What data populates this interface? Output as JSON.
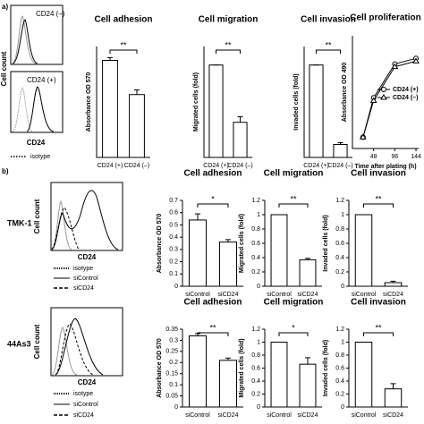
{
  "figure": {
    "panel_labels": [
      "a)",
      "b)"
    ],
    "row_labels": [
      "TMK-1",
      "44As3"
    ],
    "flow_top": {
      "y_label": "Cell count",
      "x_label": "CD24",
      "panels": [
        "CD24 (–)",
        "CD24 (+)"
      ],
      "legend": [
        "isotype"
      ]
    },
    "flow_tmk": {
      "y_label": "Cell count",
      "x_label": "CD24",
      "legend": [
        "isotype",
        "siControl",
        "siCD24"
      ]
    },
    "flow_44": {
      "y_label": "Cell count",
      "x_label": "CD24",
      "legend": [
        "isotype",
        "siControl",
        "siCD24"
      ]
    }
  },
  "chart_data": [
    {
      "type": "bar",
      "title": "Cell adhesion",
      "y_label": "Absorbance OD 570",
      "categories": [
        "CD24 (+)",
        "CD24 (–)"
      ],
      "values": [
        1.05,
        0.68
      ],
      "errors": [
        0.03,
        0.05
      ],
      "ylim": [
        0,
        1.2
      ],
      "annotation": "**"
    },
    {
      "type": "bar",
      "title": "Cell migration",
      "y_label": "Migrated cells (fold)",
      "categories": [
        "CD24 (+)",
        "CD24 (–)"
      ],
      "values": [
        1,
        0.38
      ],
      "errors": [
        0,
        0.06
      ],
      "ylim": [
        0,
        1.2
      ],
      "annotation": "**"
    },
    {
      "type": "bar",
      "title": "Cell invasion",
      "y_label": "Invaded cells (fold)",
      "categories": [
        "CD24 (+)",
        "CD24 (–)"
      ],
      "values": [
        1,
        0.14
      ],
      "errors": [
        0,
        0.02
      ],
      "ylim": [
        0,
        1.2
      ],
      "annotation": "**"
    },
    {
      "type": "line",
      "title": "Cell proliferation",
      "y_label": "Absorbance OD 490",
      "x_label": "Time after plating (h)",
      "x": [
        24,
        48,
        96,
        144
      ],
      "xlim": [
        0,
        150
      ],
      "xticks": [
        48,
        96,
        144
      ],
      "ylim": [
        0,
        2
      ],
      "series": [
        {
          "name": "CD24 (+)",
          "color": "#000000",
          "values": [
            0.2,
            0.9,
            1.5,
            1.6
          ]
        },
        {
          "name": "CD24 (–)",
          "color": "#000000",
          "values": [
            0.2,
            0.85,
            1.45,
            1.55
          ]
        }
      ]
    },
    {
      "type": "bar",
      "title": "Cell adhesion",
      "y_label": "Absorbance OD 570",
      "categories": [
        "siControl",
        "siCD24"
      ],
      "values": [
        0.54,
        0.36
      ],
      "errors": [
        0.05,
        0.02
      ],
      "ylim": [
        0,
        0.7
      ],
      "yticks": [
        0,
        0.1,
        0.2,
        0.3,
        0.4,
        0.5,
        0.6,
        0.7
      ],
      "annotation": "*"
    },
    {
      "type": "bar",
      "title": "Cell migration",
      "y_label": "Migrated cells (fold)",
      "categories": [
        "siControl",
        "siCD24"
      ],
      "values": [
        1,
        0.37
      ],
      "errors": [
        0,
        0.02
      ],
      "ylim": [
        0,
        1.2
      ],
      "yticks": [
        0,
        0.2,
        0.4,
        0.6,
        0.8,
        1,
        1.2
      ],
      "annotation": "**"
    },
    {
      "type": "bar",
      "title": "Cell invasion",
      "y_label": "Invaded cells (fold)",
      "categories": [
        "siControl",
        "siCD24"
      ],
      "values": [
        1,
        0.05
      ],
      "errors": [
        0,
        0.02
      ],
      "ylim": [
        0,
        1.2
      ],
      "yticks": [
        0,
        0.2,
        0.4,
        0.6,
        0.8,
        1,
        1.2
      ],
      "annotation": "**"
    },
    {
      "type": "bar",
      "title": "Cell adhesion",
      "y_label": "Absorbance OD 570",
      "categories": [
        "siControl",
        "siCD24"
      ],
      "values": [
        0.32,
        0.21
      ],
      "errors": [
        0.01,
        0.01
      ],
      "ylim": [
        0,
        0.35
      ],
      "yticks": [
        0,
        0.05,
        0.1,
        0.15,
        0.2,
        0.25,
        0.3,
        0.35
      ],
      "annotation": "**"
    },
    {
      "type": "bar",
      "title": "Cell migration",
      "y_label": "Migrated cells (fold)",
      "categories": [
        "siControl",
        "siCD24"
      ],
      "values": [
        1,
        0.66
      ],
      "errors": [
        0,
        0.1
      ],
      "ylim": [
        0,
        1.2
      ],
      "yticks": [
        0,
        0.2,
        0.4,
        0.6,
        0.8,
        1,
        1.2
      ],
      "annotation": "*"
    },
    {
      "type": "bar",
      "title": "Cell invasion",
      "y_label": "Invaded cells (fold)",
      "categories": [
        "siControl",
        "siCD24"
      ],
      "values": [
        1,
        0.28
      ],
      "errors": [
        0,
        0.08
      ],
      "ylim": [
        0,
        1.2
      ],
      "yticks": [
        0,
        0.2,
        0.4,
        0.6,
        0.8,
        1,
        1.2
      ],
      "annotation": "**"
    }
  ]
}
